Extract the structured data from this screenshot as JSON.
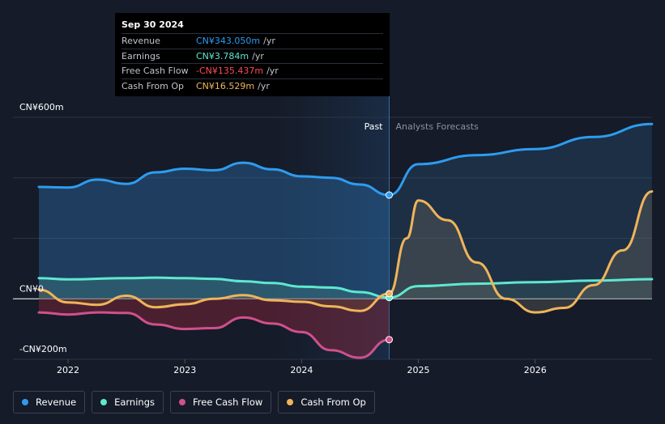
{
  "tooltip": {
    "date": "Sep 30 2024",
    "rows": [
      {
        "label": "Revenue",
        "value": "CN¥343.050m",
        "unit": "/yr",
        "color": "#2d9cf0"
      },
      {
        "label": "Earnings",
        "value": "CN¥3.784m",
        "unit": "/yr",
        "color": "#5ee8d0"
      },
      {
        "label": "Free Cash Flow",
        "value": "-CN¥135.437m",
        "unit": "/yr",
        "color": "#ff4b55"
      },
      {
        "label": "Cash From Op",
        "value": "CN¥16.529m",
        "unit": "/yr",
        "color": "#f0b45a"
      }
    ]
  },
  "legend": [
    {
      "label": "Revenue",
      "color": "#2d9cf0"
    },
    {
      "label": "Earnings",
      "color": "#5ee8d0"
    },
    {
      "label": "Free Cash Flow",
      "color": "#d0508c"
    },
    {
      "label": "Cash From Op",
      "color": "#f0b45a"
    }
  ],
  "chart_data": {
    "type": "line",
    "title": "",
    "y_unit_label": "CN¥m",
    "ylim": [
      -200,
      600
    ],
    "xlim": [
      2021.7,
      2027.0
    ],
    "y_tick_labels": [
      {
        "value": 600,
        "label": "CN¥600m"
      },
      {
        "value": 0,
        "label": "CN¥0"
      },
      {
        "value": -200,
        "label": "-CN¥200m"
      }
    ],
    "gridlines": [
      600,
      400,
      200,
      0,
      -200
    ],
    "x_ticks": [
      {
        "value": 2022,
        "label": "2022"
      },
      {
        "value": 2023,
        "label": "2023"
      },
      {
        "value": 2024,
        "label": "2024"
      },
      {
        "value": 2025,
        "label": "2025"
      },
      {
        "value": 2026,
        "label": "2026"
      }
    ],
    "divider_x": 2024.75,
    "shade_start_x": 2023.75,
    "past_label": "Past",
    "forecast_label": "Analysts Forecasts",
    "series": [
      {
        "name": "Revenue",
        "color": "#2d9cf0",
        "fill": true,
        "points": [
          [
            2021.75,
            370
          ],
          [
            2022.0,
            368
          ],
          [
            2022.25,
            394
          ],
          [
            2022.5,
            380
          ],
          [
            2022.75,
            418
          ],
          [
            2023.0,
            430
          ],
          [
            2023.25,
            425
          ],
          [
            2023.5,
            450
          ],
          [
            2023.75,
            428
          ],
          [
            2024.0,
            405
          ],
          [
            2024.25,
            400
          ],
          [
            2024.5,
            378
          ],
          [
            2024.75,
            343
          ]
        ],
        "forecast": [
          [
            2024.75,
            343
          ],
          [
            2025.0,
            445
          ],
          [
            2025.5,
            475
          ],
          [
            2026.0,
            495
          ],
          [
            2026.5,
            535
          ],
          [
            2027.0,
            578
          ]
        ]
      },
      {
        "name": "Earnings",
        "color": "#5ee8d0",
        "fill": true,
        "points": [
          [
            2021.75,
            68
          ],
          [
            2022.0,
            64
          ],
          [
            2022.5,
            68
          ],
          [
            2022.75,
            70
          ],
          [
            2023.0,
            68
          ],
          [
            2023.25,
            66
          ],
          [
            2023.5,
            58
          ],
          [
            2023.75,
            52
          ],
          [
            2024.0,
            40
          ],
          [
            2024.25,
            37
          ],
          [
            2024.5,
            22
          ],
          [
            2024.75,
            4
          ]
        ],
        "forecast": [
          [
            2024.75,
            4
          ],
          [
            2025.0,
            42
          ],
          [
            2025.5,
            50
          ],
          [
            2026.0,
            55
          ],
          [
            2026.5,
            60
          ],
          [
            2027.0,
            65
          ]
        ]
      },
      {
        "name": "Free Cash Flow",
        "color": "#d0508c",
        "fill": true,
        "points": [
          [
            2021.75,
            -45
          ],
          [
            2022.0,
            -52
          ],
          [
            2022.25,
            -45
          ],
          [
            2022.5,
            -47
          ],
          [
            2022.75,
            -85
          ],
          [
            2023.0,
            -100
          ],
          [
            2023.25,
            -97
          ],
          [
            2023.5,
            -62
          ],
          [
            2023.75,
            -82
          ],
          [
            2024.0,
            -110
          ],
          [
            2024.25,
            -170
          ],
          [
            2024.5,
            -195
          ],
          [
            2024.75,
            -135
          ]
        ],
        "forecast": []
      },
      {
        "name": "Cash From Op",
        "color": "#f0b45a",
        "fill": true,
        "points": [
          [
            2021.75,
            30
          ],
          [
            2022.0,
            -12
          ],
          [
            2022.25,
            -20
          ],
          [
            2022.5,
            10
          ],
          [
            2022.75,
            -28
          ],
          [
            2023.0,
            -18
          ],
          [
            2023.25,
            0
          ],
          [
            2023.5,
            12
          ],
          [
            2023.75,
            -5
          ],
          [
            2024.0,
            -10
          ],
          [
            2024.25,
            -25
          ],
          [
            2024.5,
            -40
          ],
          [
            2024.75,
            17
          ]
        ],
        "forecast": [
          [
            2024.75,
            17
          ],
          [
            2024.9,
            200
          ],
          [
            2025.0,
            325
          ],
          [
            2025.25,
            260
          ],
          [
            2025.5,
            120
          ],
          [
            2025.75,
            0
          ],
          [
            2026.0,
            -45
          ],
          [
            2026.25,
            -30
          ],
          [
            2026.5,
            45
          ],
          [
            2026.75,
            160
          ],
          [
            2027.0,
            355
          ]
        ]
      }
    ]
  }
}
